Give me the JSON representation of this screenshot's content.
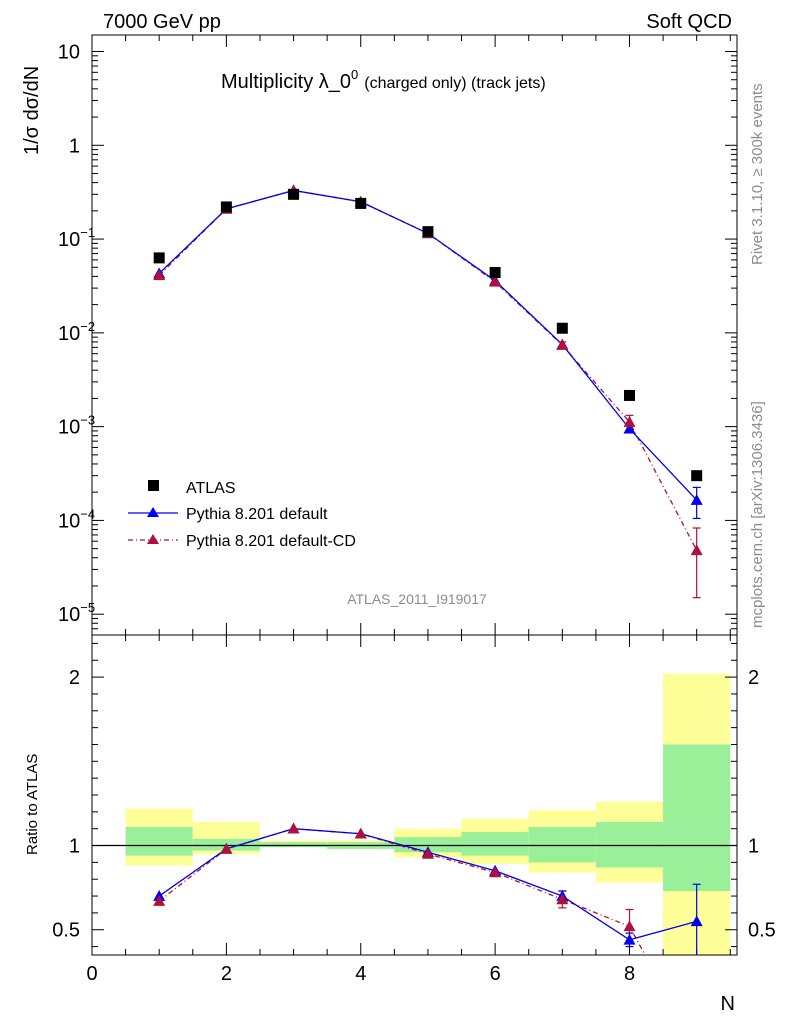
{
  "header": {
    "left": "7000 GeV pp",
    "right": "Soft QCD"
  },
  "side_labels": {
    "rivet": "Rivet 3.1.10, ≥ 300k events",
    "mcplots": "mcplots.cern.ch [arXiv:1306.3436]"
  },
  "chart_data": [
    {
      "type": "scatter",
      "title_main": "Multiplicity λ_0",
      "title_sup": "0",
      "title_sub": "(charged only) (track jets)",
      "ylabel": "1/σ dσ/dN",
      "yscale": "log",
      "ylim": [
        6e-06,
        15
      ],
      "xlim": [
        0,
        9.6
      ],
      "analysis_label": "ATLAS_2011_I919017",
      "legend_position": "lower-left",
      "legend": [
        "ATLAS",
        "Pythia 8.201 default",
        "Pythia 8.201 default-CD"
      ],
      "colors": {
        "data": "#000000",
        "default": "#0000ee",
        "cd": "#b0103a"
      },
      "y_ticks": [
        {
          "value": 10,
          "label": "10"
        },
        {
          "value": 1,
          "label": "1"
        },
        {
          "value": 0.1,
          "base": "10",
          "exp": "−1"
        },
        {
          "value": 0.01,
          "base": "10",
          "exp": "−2"
        },
        {
          "value": 0.001,
          "base": "10",
          "exp": "−3"
        },
        {
          "value": 0.0001,
          "base": "10",
          "exp": "−4"
        },
        {
          "value": 1e-05,
          "base": "10",
          "exp": "−5"
        }
      ],
      "series": [
        {
          "name": "ATLAS",
          "x": [
            1,
            2,
            3,
            4,
            5,
            6,
            7,
            8,
            9
          ],
          "y": [
            0.063,
            0.22,
            0.3,
            0.24,
            0.12,
            0.044,
            0.0112,
            0.00215,
            0.0003
          ]
        },
        {
          "name": "Pythia 8.201 default",
          "x": [
            1,
            2,
            3,
            4,
            5,
            6,
            7,
            8,
            9
          ],
          "y": [
            0.043,
            0.21,
            0.33,
            0.25,
            0.115,
            0.036,
            0.0075,
            0.00095,
            0.000165
          ],
          "err_lo": [
            0,
            0,
            0,
            0,
            0,
            0,
            0,
            8e-05,
            6e-05
          ],
          "err_hi": [
            0,
            0,
            0,
            0,
            0,
            0,
            0,
            8e-05,
            6e-05
          ]
        },
        {
          "name": "Pythia 8.201 default-CD",
          "x": [
            1,
            2,
            3,
            4,
            5,
            6,
            7,
            8,
            9
          ],
          "y": [
            0.041,
            0.21,
            0.33,
            0.25,
            0.115,
            0.035,
            0.0074,
            0.00112,
            4.8e-05
          ],
          "err_lo": [
            0,
            0,
            0,
            0,
            0,
            0,
            0.0006,
            0.0002,
            3.3e-05
          ],
          "err_hi": [
            0,
            0,
            0,
            0,
            0,
            0,
            0.0006,
            0.0002,
            3.5e-05
          ]
        }
      ]
    },
    {
      "type": "scatter",
      "ylabel": "Ratio to ATLAS",
      "xlabel": "N",
      "ylim": [
        0.35,
        2.25
      ],
      "xlim": [
        0,
        9.6
      ],
      "y_ticks": [
        0.5,
        1,
        2
      ],
      "x_ticks": [
        0,
        2,
        4,
        6,
        8
      ],
      "reference_line": 1,
      "bands": [
        {
          "x0": 0.5,
          "x1": 1.5,
          "green": [
            0.94,
            1.11
          ],
          "yellow": [
            0.88,
            1.22
          ]
        },
        {
          "x0": 1.5,
          "x1": 2.5,
          "green": [
            0.97,
            1.04
          ],
          "yellow": [
            0.95,
            1.14
          ]
        },
        {
          "x0": 2.5,
          "x1": 3.5,
          "green": [
            0.99,
            1.02
          ],
          "yellow": [
            0.99,
            1.03
          ]
        },
        {
          "x0": 3.5,
          "x1": 4.5,
          "green": [
            0.98,
            1.02
          ],
          "yellow": [
            0.98,
            1.03
          ]
        },
        {
          "x0": 4.5,
          "x1": 5.5,
          "green": [
            0.96,
            1.05
          ],
          "yellow": [
            0.93,
            1.1
          ]
        },
        {
          "x0": 5.5,
          "x1": 6.5,
          "green": [
            0.94,
            1.08
          ],
          "yellow": [
            0.89,
            1.16
          ]
        },
        {
          "x0": 6.5,
          "x1": 7.5,
          "green": [
            0.9,
            1.11
          ],
          "yellow": [
            0.84,
            1.21
          ]
        },
        {
          "x0": 7.5,
          "x1": 8.5,
          "green": [
            0.87,
            1.14
          ],
          "yellow": [
            0.78,
            1.26
          ]
        },
        {
          "x0": 8.5,
          "x1": 9.5,
          "green": [
            0.73,
            1.6
          ],
          "yellow": [
            0.3,
            2.02
          ]
        }
      ],
      "series": [
        {
          "name": "Pythia 8.201 default",
          "x": [
            1,
            2,
            3,
            4,
            5,
            6,
            7,
            8,
            9
          ],
          "y": [
            0.7,
            0.98,
            1.1,
            1.07,
            0.96,
            0.85,
            0.7,
            0.44,
            0.55
          ],
          "err_lo": [
            0,
            0,
            0,
            0,
            0,
            0,
            0.02,
            0.04,
            0.22
          ],
          "err_hi": [
            0,
            0,
            0,
            0,
            0,
            0,
            0.03,
            0.04,
            0.22
          ]
        },
        {
          "name": "Pythia 8.201 default-CD",
          "x": [
            1,
            2,
            3,
            4,
            5,
            6,
            7,
            8,
            8.3
          ],
          "y": [
            0.67,
            0.98,
            1.1,
            1.07,
            0.95,
            0.84,
            0.68,
            0.52,
            0.3
          ],
          "err_lo": [
            0,
            0,
            0,
            0,
            0,
            0,
            0.05,
            0.1,
            0
          ],
          "err_hi": [
            0,
            0,
            0,
            0,
            0,
            0,
            0.05,
            0.1,
            0
          ],
          "markers": [
            true,
            true,
            true,
            true,
            true,
            true,
            true,
            true,
            false
          ]
        }
      ]
    }
  ]
}
